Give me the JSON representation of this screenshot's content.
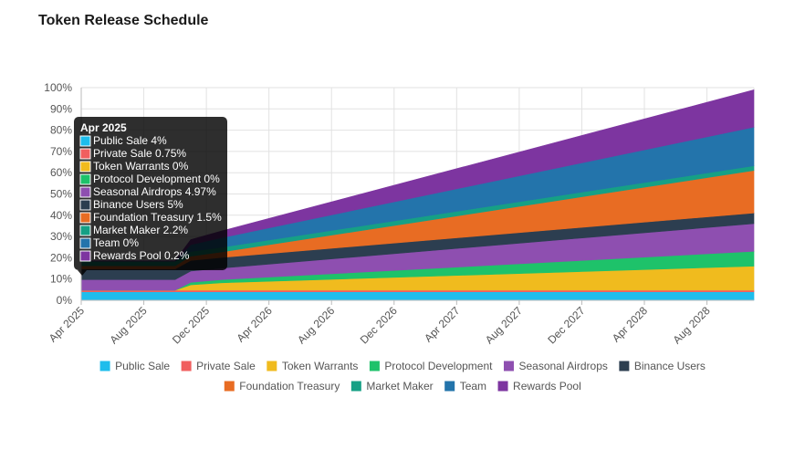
{
  "page": {
    "title": "Token Release Schedule"
  },
  "chart_data": {
    "type": "area",
    "stacked": true,
    "title": "Token Release Schedule",
    "y_unit": "%",
    "ylim": [
      0,
      100
    ],
    "y_ticks": [
      "0%",
      "10%",
      "20%",
      "30%",
      "40%",
      "50%",
      "60%",
      "70%",
      "80%",
      "90%",
      "100%"
    ],
    "x_tick_labels": [
      "Apr 2025",
      "Aug 2025",
      "Dec 2025",
      "Apr 2026",
      "Aug 2026",
      "Dec 2026",
      "Apr 2027",
      "Aug 2027",
      "Dec 2027",
      "Apr 2028",
      "Aug 2028"
    ],
    "x_range": [
      "2025-04",
      "2028-11"
    ],
    "grid": true,
    "legend_position": "bottom",
    "series": [
      {
        "name": "Public Sale",
        "color": "#1ebdec",
        "points": [
          [
            "2025-04",
            4
          ],
          [
            "2025-10",
            4
          ],
          [
            "2025-11",
            4
          ],
          [
            "2028-11",
            4
          ]
        ]
      },
      {
        "name": "Private Sale",
        "color": "#f05f5f",
        "points": [
          [
            "2025-04",
            0.75
          ],
          [
            "2025-10",
            0.75
          ],
          [
            "2025-11",
            0.75
          ],
          [
            "2028-11",
            0.75
          ]
        ]
      },
      {
        "name": "Token Warrants",
        "color": "#f0bb1e",
        "points": [
          [
            "2025-04",
            0
          ],
          [
            "2025-10",
            0
          ],
          [
            "2025-11",
            2.5
          ],
          [
            "2026-01",
            3.5
          ],
          [
            "2028-11",
            11.3
          ]
        ]
      },
      {
        "name": "Protocol Development",
        "color": "#1ec26a",
        "points": [
          [
            "2025-04",
            0
          ],
          [
            "2025-10",
            0
          ],
          [
            "2025-11",
            1.2
          ],
          [
            "2026-01",
            1.5
          ],
          [
            "2028-11",
            7
          ]
        ]
      },
      {
        "name": "Seasonal Airdrops",
        "color": "#8e4fb0",
        "points": [
          [
            "2025-04",
            4.97
          ],
          [
            "2025-10",
            4.97
          ],
          [
            "2025-11",
            5.3
          ],
          [
            "2026-01",
            5.4
          ],
          [
            "2028-11",
            13
          ]
        ]
      },
      {
        "name": "Binance Users",
        "color": "#2c3e50",
        "points": [
          [
            "2025-04",
            5
          ],
          [
            "2025-10",
            5
          ],
          [
            "2025-11",
            5
          ],
          [
            "2028-11",
            5
          ]
        ]
      },
      {
        "name": "Foundation Treasury",
        "color": "#e86c23",
        "points": [
          [
            "2025-04",
            1.5
          ],
          [
            "2025-10",
            1.5
          ],
          [
            "2025-11",
            2
          ],
          [
            "2026-01",
            2.6
          ],
          [
            "2028-11",
            20
          ]
        ]
      },
      {
        "name": "Market Maker",
        "color": "#16a085",
        "points": [
          [
            "2025-04",
            2.2
          ],
          [
            "2025-10",
            2.2
          ],
          [
            "2025-11",
            2.2
          ],
          [
            "2028-11",
            2.2
          ]
        ]
      },
      {
        "name": "Team",
        "color": "#2374ab",
        "points": [
          [
            "2025-04",
            0
          ],
          [
            "2025-10",
            0
          ],
          [
            "2025-11",
            3.2
          ],
          [
            "2026-01",
            4.5
          ],
          [
            "2028-11",
            18.2
          ]
        ]
      },
      {
        "name": "Rewards Pool",
        "color": "#7d35a0",
        "points": [
          [
            "2025-04",
            0.2
          ],
          [
            "2025-10",
            0.2
          ],
          [
            "2025-11",
            2.4
          ],
          [
            "2026-01",
            3.2
          ],
          [
            "2028-11",
            17.5
          ]
        ]
      }
    ],
    "tooltip": {
      "title": "Apr 2025",
      "items": [
        {
          "name": "Public Sale",
          "value": "4%",
          "color": "#1ebdec"
        },
        {
          "name": "Private Sale",
          "value": "0.75%",
          "color": "#f05f5f"
        },
        {
          "name": "Token Warrants",
          "value": "0%",
          "color": "#f0bb1e"
        },
        {
          "name": "Protocol Development",
          "value": "0%",
          "color": "#1ec26a"
        },
        {
          "name": "Seasonal Airdrops",
          "value": "4.97%",
          "color": "#8e4fb0"
        },
        {
          "name": "Binance Users",
          "value": "5%",
          "color": "#2c3e50"
        },
        {
          "name": "Foundation Treasury",
          "value": "1.5%",
          "color": "#e86c23"
        },
        {
          "name": "Market Maker",
          "value": "2.2%",
          "color": "#16a085"
        },
        {
          "name": "Team",
          "value": "0%",
          "color": "#2374ab"
        },
        {
          "name": "Rewards Pool",
          "value": "0.2%",
          "color": "#7d35a0"
        }
      ]
    }
  }
}
